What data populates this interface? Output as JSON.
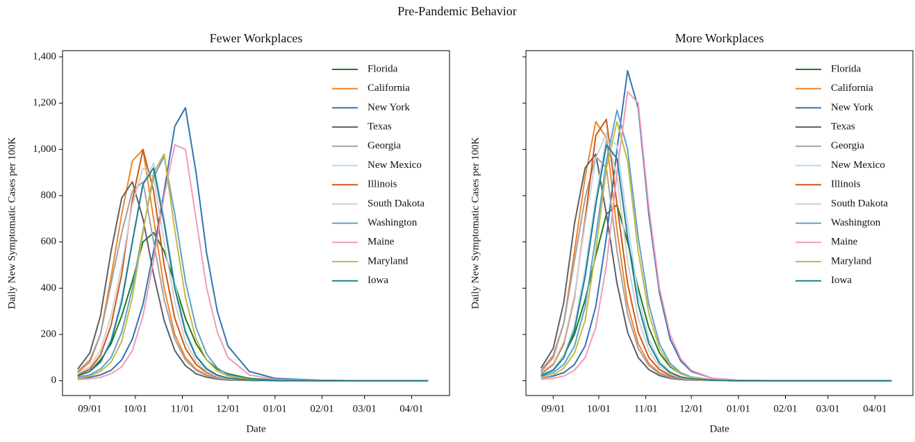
{
  "title": "Pre-Pandemic Behavior",
  "chart_data": [
    {
      "type": "line",
      "title": "Fewer Workplaces",
      "x_label": "Date",
      "y_label": "Daily New Symptomatic Cases per 100K",
      "x": [
        "08/24",
        "09/01",
        "09/08",
        "09/15",
        "09/22",
        "09/29",
        "10/06",
        "10/13",
        "10/20",
        "10/27",
        "11/03",
        "11/10",
        "11/17",
        "11/24",
        "12/01",
        "12/15",
        "01/01",
        "02/01",
        "03/01",
        "04/12"
      ],
      "xlim": [
        "08/14",
        "04/26"
      ],
      "xticks": [
        "09/01",
        "10/01",
        "11/01",
        "12/01",
        "01/01",
        "02/01",
        "03/01",
        "04/01"
      ],
      "ylim": [
        -64,
        1427
      ],
      "yticks": [
        0,
        200,
        400,
        600,
        800,
        {
          "value": 1000,
          "label": "1,000"
        },
        {
          "value": 1200,
          "label": "1,200"
        },
        {
          "value": 1400,
          "label": "1,400"
        }
      ],
      "ytick_labels": true,
      "legend": "upper right",
      "series": [
        {
          "name": "Florida",
          "color": "#1a7a1a",
          "values": [
            20,
            40,
            90,
            160,
            280,
            430,
            600,
            640,
            560,
            420,
            270,
            160,
            90,
            50,
            30,
            10,
            3,
            1,
            0,
            0
          ]
        },
        {
          "name": "California",
          "color": "#f28522",
          "values": [
            35,
            80,
            200,
            450,
            720,
            950,
            1000,
            700,
            400,
            200,
            100,
            50,
            25,
            12,
            6,
            2,
            1,
            0,
            0,
            0
          ]
        },
        {
          "name": "New York",
          "color": "#2f74b0",
          "values": [
            10,
            15,
            25,
            45,
            90,
            180,
            330,
            560,
            820,
            1100,
            1180,
            900,
            550,
            300,
            150,
            40,
            10,
            2,
            0,
            0
          ]
        },
        {
          "name": "Texas",
          "color": "#5d5d66",
          "values": [
            50,
            120,
            280,
            560,
            790,
            860,
            700,
            460,
            260,
            130,
            65,
            30,
            15,
            7,
            3,
            1,
            0,
            0,
            0,
            0
          ]
        },
        {
          "name": "Georgia",
          "color": "#a0a0a8",
          "values": [
            40,
            90,
            200,
            420,
            640,
            820,
            860,
            600,
            350,
            180,
            90,
            45,
            22,
            10,
            5,
            2,
            0,
            0,
            0,
            0
          ]
        },
        {
          "name": "New Mexico",
          "color": "#b5d8ef",
          "values": [
            20,
            40,
            80,
            180,
            360,
            600,
            850,
            940,
            700,
            420,
            220,
            110,
            55,
            25,
            12,
            3,
            1,
            0,
            0,
            0
          ]
        },
        {
          "name": "Illinois",
          "color": "#c9571a",
          "values": [
            25,
            50,
            110,
            240,
            460,
            780,
            1000,
            820,
            500,
            270,
            140,
            70,
            35,
            16,
            8,
            2,
            1,
            0,
            0,
            0
          ]
        },
        {
          "name": "South Dakota",
          "color": "#d0d0d0",
          "values": [
            30,
            60,
            130,
            280,
            500,
            760,
            920,
            880,
            600,
            340,
            170,
            85,
            40,
            18,
            9,
            2,
            1,
            0,
            0,
            0
          ]
        },
        {
          "name": "Washington",
          "color": "#5ba0d0",
          "values": [
            15,
            25,
            50,
            100,
            210,
            400,
            650,
            880,
            970,
            720,
            430,
            230,
            115,
            55,
            25,
            6,
            2,
            0,
            0,
            0
          ]
        },
        {
          "name": "Maine",
          "color": "#f29ab5",
          "values": [
            5,
            8,
            15,
            30,
            60,
            130,
            280,
            520,
            800,
            1020,
            1000,
            700,
            400,
            210,
            100,
            25,
            6,
            1,
            0,
            0
          ]
        },
        {
          "name": "Maryland",
          "color": "#c8b83c",
          "values": [
            10,
            20,
            40,
            80,
            170,
            360,
            640,
            900,
            980,
            650,
            360,
            180,
            90,
            42,
            20,
            5,
            1,
            0,
            0,
            0
          ]
        },
        {
          "name": "Iowa",
          "color": "#1e7b8f",
          "values": [
            20,
            40,
            80,
            170,
            340,
            600,
            850,
            920,
            680,
            400,
            210,
            105,
            50,
            24,
            11,
            3,
            1,
            0,
            0,
            0
          ]
        }
      ]
    },
    {
      "type": "line",
      "title": "More Workplaces",
      "x_label": "Date",
      "y_label": "Daily New Symptomatic Cases per 100K",
      "x": [
        "08/24",
        "09/01",
        "09/08",
        "09/15",
        "09/22",
        "09/29",
        "10/06",
        "10/13",
        "10/20",
        "10/27",
        "11/03",
        "11/10",
        "11/17",
        "11/24",
        "12/01",
        "12/15",
        "01/01",
        "02/01",
        "03/01",
        "04/12"
      ],
      "xlim": [
        "08/14",
        "04/26"
      ],
      "xticks": [
        "09/01",
        "10/01",
        "11/01",
        "12/01",
        "01/01",
        "02/01",
        "03/01",
        "04/01"
      ],
      "ylim": [
        -64,
        1427
      ],
      "yticks": [
        0,
        200,
        400,
        600,
        800,
        1000,
        1200,
        1400
      ],
      "ytick_labels": false,
      "legend": "upper right",
      "series": [
        {
          "name": "Florida",
          "color": "#1a7a1a",
          "values": [
            25,
            50,
            110,
            200,
            350,
            540,
            720,
            760,
            600,
            400,
            230,
            120,
            60,
            30,
            15,
            4,
            1,
            0,
            0,
            0
          ]
        },
        {
          "name": "California",
          "color": "#f28522",
          "values": [
            40,
            100,
            250,
            560,
            880,
            1120,
            1050,
            650,
            330,
            160,
            75,
            35,
            17,
            8,
            4,
            1,
            0,
            0,
            0,
            0
          ]
        },
        {
          "name": "New York",
          "color": "#2f74b0",
          "values": [
            12,
            20,
            35,
            70,
            150,
            320,
            620,
            1000,
            1340,
            1180,
            720,
            380,
            180,
            85,
            40,
            10,
            2,
            0,
            0,
            0
          ]
        },
        {
          "name": "Texas",
          "color": "#5d5d66",
          "values": [
            55,
            140,
            340,
            680,
            920,
            980,
            720,
            420,
            210,
            100,
            48,
            22,
            10,
            5,
            2,
            1,
            0,
            0,
            0,
            0
          ]
        },
        {
          "name": "Georgia",
          "color": "#a0a0a8",
          "values": [
            45,
            110,
            250,
            520,
            790,
            970,
            920,
            560,
            290,
            140,
            65,
            30,
            14,
            7,
            3,
            1,
            0,
            0,
            0,
            0
          ]
        },
        {
          "name": "New Mexico",
          "color": "#b5d8ef",
          "values": [
            25,
            50,
            110,
            240,
            480,
            790,
            1050,
            1020,
            680,
            370,
            180,
            85,
            40,
            18,
            8,
            2,
            0,
            0,
            0,
            0
          ]
        },
        {
          "name": "Illinois",
          "color": "#c9571a",
          "values": [
            30,
            70,
            160,
            360,
            700,
            1060,
            1130,
            760,
            420,
            210,
            100,
            48,
            22,
            10,
            5,
            1,
            0,
            0,
            0,
            0
          ]
        },
        {
          "name": "South Dakota",
          "color": "#d0d0d0",
          "values": [
            35,
            75,
            170,
            370,
            680,
            960,
            1070,
            880,
            520,
            270,
            130,
            60,
            28,
            13,
            6,
            1,
            0,
            0,
            0,
            0
          ]
        },
        {
          "name": "Washington",
          "color": "#5ba0d0",
          "values": [
            18,
            35,
            70,
            150,
            320,
            620,
            950,
            1170,
            1000,
            620,
            330,
            160,
            75,
            35,
            16,
            4,
            1,
            0,
            0,
            0
          ]
        },
        {
          "name": "Maine",
          "color": "#f29ab5",
          "values": [
            6,
            10,
            20,
            45,
            100,
            230,
            500,
            900,
            1250,
            1200,
            750,
            400,
            200,
            95,
            45,
            10,
            2,
            0,
            0,
            0
          ]
        },
        {
          "name": "Maryland",
          "color": "#c8b83c",
          "values": [
            12,
            25,
            55,
            120,
            260,
            560,
            920,
            1120,
            950,
            560,
            290,
            140,
            65,
            30,
            14,
            3,
            1,
            0,
            0,
            0
          ]
        },
        {
          "name": "Iowa",
          "color": "#1e7b8f",
          "values": [
            22,
            45,
            100,
            220,
            450,
            760,
            1020,
            960,
            620,
            330,
            160,
            75,
            35,
            16,
            8,
            2,
            0,
            0,
            0,
            0
          ]
        }
      ]
    }
  ]
}
